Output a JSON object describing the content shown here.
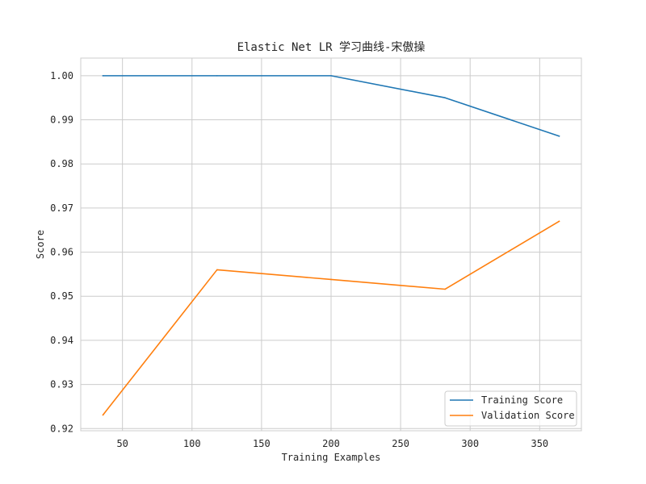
{
  "chart_data": {
    "type": "line",
    "title": "Elastic Net LR 学习曲线-宋傲操",
    "xlabel": "Training Examples",
    "ylabel": "Score",
    "xlim": [
      20,
      380
    ],
    "ylim": [
      0.9195,
      1.004
    ],
    "xticks": [
      50,
      100,
      150,
      200,
      250,
      300,
      350
    ],
    "yticks": [
      0.92,
      0.93,
      0.94,
      0.95,
      0.96,
      0.97,
      0.98,
      0.99,
      1.0
    ],
    "ytick_format": 2,
    "grid": true,
    "legend_position": "lower-right",
    "x": [
      36,
      118,
      200,
      282,
      364
    ],
    "series": [
      {
        "name": "Training Score",
        "color": "#1f77b4",
        "values": [
          1.0,
          1.0,
          1.0,
          0.995,
          0.9863
        ]
      },
      {
        "name": "Validation Score",
        "color": "#ff7f0e",
        "values": [
          0.9231,
          0.956,
          0.9538,
          0.9516,
          0.967
        ]
      }
    ]
  }
}
